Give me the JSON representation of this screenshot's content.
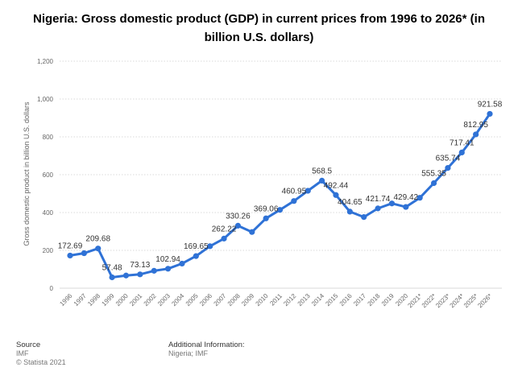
{
  "title": "Nigeria: Gross domestic product (GDP) in current prices from 1996 to 2026* (in billion U.S. dollars)",
  "footer": {
    "source_label": "Source",
    "source_value": "IMF",
    "copyright": "© Statista 2021",
    "additional_label": "Additional Information:",
    "additional_value": "Nigeria; IMF"
  },
  "colors": {
    "series": "#2f72d6",
    "grid": "#d9d9d9",
    "axis_text": "#666666",
    "label_text": "#333333"
  },
  "chart_data": {
    "type": "line",
    "title": "Nigeria: Gross domestic product (GDP) in current prices from 1996 to 2026* (in billion U.S. dollars)",
    "xlabel": "",
    "ylabel": "Gross domestic product in billion U.S. dollars",
    "ylim": [
      0,
      1200
    ],
    "yticks": [
      0,
      200,
      400,
      600,
      800,
      1000,
      1200
    ],
    "ytick_labels": [
      "0",
      "200",
      "400",
      "600",
      "800",
      "1,000",
      "1,200"
    ],
    "grid": true,
    "categories": [
      "1996",
      "1997",
      "1998",
      "1999",
      "2000",
      "2001",
      "2002",
      "2003",
      "2004",
      "2005",
      "2006",
      "2007",
      "2008",
      "2009",
      "2010",
      "2011",
      "2012",
      "2013",
      "2014",
      "2015",
      "2016",
      "2017",
      "2018",
      "2019",
      "2020",
      "2021*",
      "2022*",
      "2023*",
      "2024*",
      "2025*",
      "2026*"
    ],
    "series": [
      {
        "name": "",
        "values": [
          172.69,
          185,
          209.68,
          57.48,
          67,
          73.13,
          92,
          102.94,
          130,
          169.65,
          222,
          262.22,
          330.26,
          297,
          369.06,
          414,
          460.95,
          515,
          568.5,
          492.44,
          404.65,
          376,
          421.74,
          448,
          429.42,
          478,
          555.35,
          635.74,
          717.41,
          812.95,
          921.58
        ]
      }
    ],
    "labels": [
      "172.69",
      "",
      "209.68",
      "57.48",
      "",
      "73.13",
      "",
      "102.94",
      "",
      "169.65",
      "",
      "262.22",
      "330.26",
      "",
      "369.06",
      "",
      "460.95",
      "",
      "568.5",
      "492.44",
      "404.65",
      "",
      "421.74",
      "",
      "429.42",
      "",
      "555.35",
      "635.74",
      "717.41",
      "812.95",
      "921.58"
    ]
  }
}
